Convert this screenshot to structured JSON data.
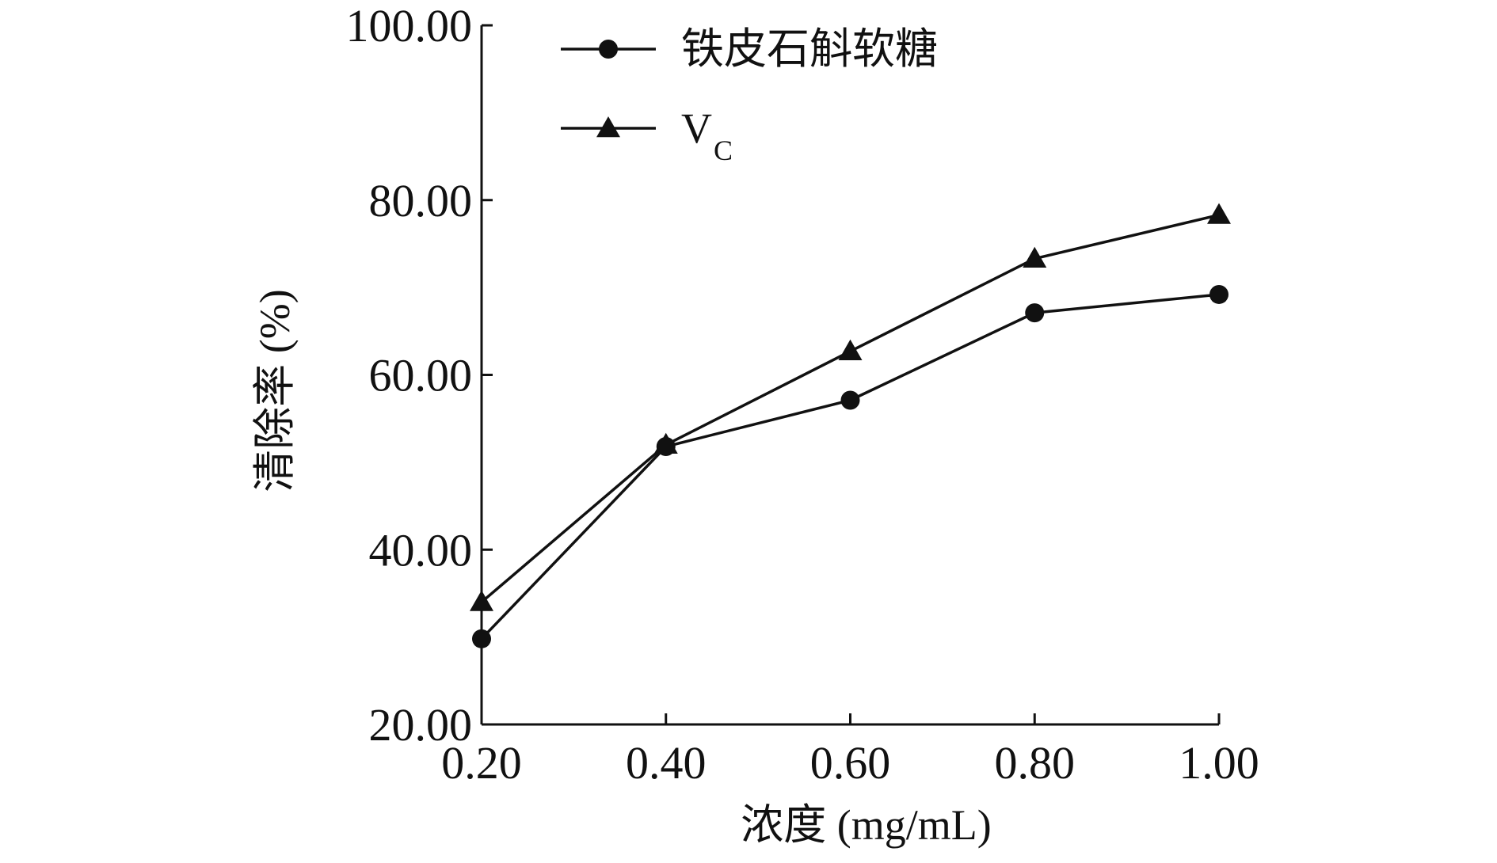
{
  "chart_data": {
    "type": "line",
    "title": "",
    "xlabel": "浓度 (mg/mL)",
    "ylabel": "清除率 (%)",
    "categories": [
      "0.20",
      "0.40",
      "0.60",
      "0.80",
      "1.00"
    ],
    "x": [
      0.2,
      0.4,
      0.6,
      0.8,
      1.0
    ],
    "xlim": [
      0.2,
      1.0
    ],
    "ylim": [
      20,
      100
    ],
    "yticks": [
      "20.00",
      "40.00",
      "60.00",
      "80.00",
      "100.00"
    ],
    "ytick_values": [
      20,
      40,
      60,
      80,
      100
    ],
    "grid": false,
    "legend_position": "top-left",
    "series": [
      {
        "name": "铁皮石斛软糖",
        "marker": "circle",
        "color": "#111111",
        "values": [
          29.8,
          51.8,
          57.1,
          67.1,
          69.2
        ]
      },
      {
        "name": "V",
        "name_subscript": "C",
        "marker": "triangle",
        "color": "#111111",
        "values": [
          34.0,
          52.0,
          62.7,
          73.3,
          78.3
        ]
      }
    ]
  }
}
